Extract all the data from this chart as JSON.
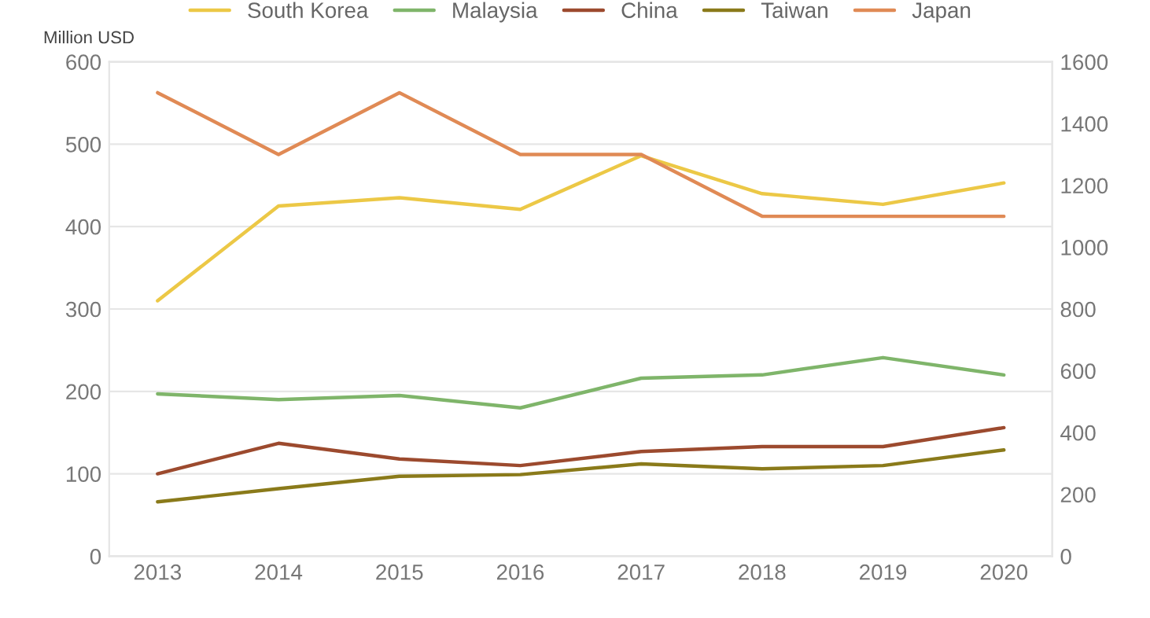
{
  "chart_data": {
    "type": "line",
    "ylabel": "Million USD",
    "categories": [
      "2013",
      "2014",
      "2015",
      "2016",
      "2017",
      "2018",
      "2019",
      "2020"
    ],
    "series": [
      {
        "name": "South Korea",
        "color": "#ecc846",
        "values": [
          310,
          425,
          435,
          421,
          486,
          440,
          427,
          453
        ]
      },
      {
        "name": "Malaysia",
        "color": "#7fb56a",
        "values": [
          197,
          190,
          195,
          180,
          216,
          220,
          241,
          220
        ]
      },
      {
        "name": "China",
        "color": "#9c4a2e",
        "values": [
          100,
          137,
          118,
          110,
          127,
          133,
          133,
          156
        ]
      },
      {
        "name": "Taiwan",
        "color": "#8a7a1a",
        "values": [
          66,
          82,
          97,
          99,
          112,
          106,
          110,
          129
        ]
      },
      {
        "name": "Japan",
        "color": "#e08a55",
        "axis": "y2",
        "values": [
          1500,
          1300,
          1500,
          1300,
          1300,
          1100,
          1100,
          1100
        ]
      }
    ],
    "ylim": [
      0,
      600
    ],
    "yticks": [
      0,
      100,
      200,
      300,
      400,
      500,
      600
    ],
    "y2lim": [
      0,
      1600
    ],
    "y2ticks": [
      0,
      200,
      400,
      600,
      800,
      1000,
      1200,
      1400,
      1600
    ],
    "grid": "y",
    "legend": "top",
    "marker": "none",
    "line_style": "solid"
  }
}
